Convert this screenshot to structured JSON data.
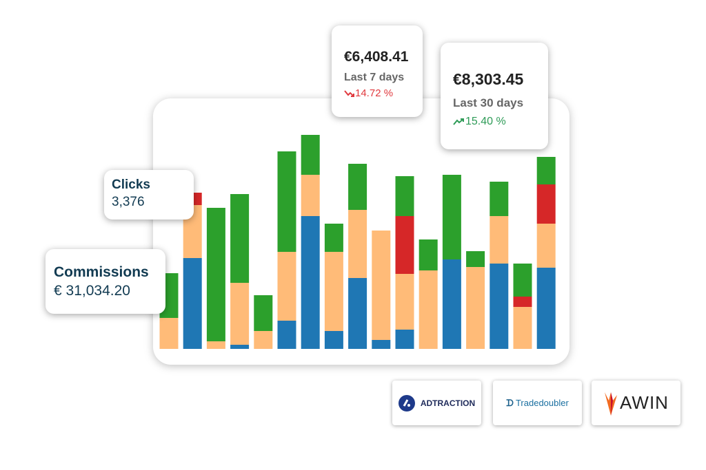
{
  "cards": {
    "week": {
      "amount": "€6,408.41",
      "period": "Last 7 days",
      "change": "14.72 %"
    },
    "month": {
      "amount": "€8,303.45",
      "period": "Last 30 days",
      "change": "15.40 %"
    },
    "clicks": {
      "label": "Clicks",
      "value": "3,376"
    },
    "commissions": {
      "label": "Commissions",
      "value": "€ 31,034.20"
    }
  },
  "partners": [
    "ADTRACTION",
    "Tradedoubler",
    "AWIN"
  ],
  "chart_data": {
    "type": "stacked_bar",
    "ylim": [
      0,
      320
    ],
    "categories": [
      null,
      null,
      null,
      null,
      null,
      null,
      null,
      null,
      null,
      null,
      null,
      null,
      null,
      null,
      null,
      null,
      null
    ],
    "series": [
      {
        "color": "#1f77b4",
        "values": [
          0,
          132,
          0,
          6,
          0,
          41,
          193,
          26,
          103,
          13,
          28,
          0,
          130,
          0,
          124,
          0,
          118
        ]
      },
      {
        "color": "#ffbb78",
        "values": [
          45,
          77,
          11,
          90,
          26,
          100,
          60,
          115,
          99,
          159,
          81,
          114,
          0,
          119,
          69,
          61,
          64
        ]
      },
      {
        "color": "#d62728",
        "values": [
          0,
          18,
          0,
          0,
          0,
          0,
          0,
          0,
          0,
          0,
          84,
          0,
          0,
          0,
          0,
          15,
          57
        ]
      },
      {
        "color": "#2ca02c",
        "values": [
          65,
          0,
          194,
          129,
          52,
          146,
          58,
          41,
          67,
          0,
          58,
          45,
          123,
          23,
          50,
          48,
          40
        ]
      }
    ]
  }
}
